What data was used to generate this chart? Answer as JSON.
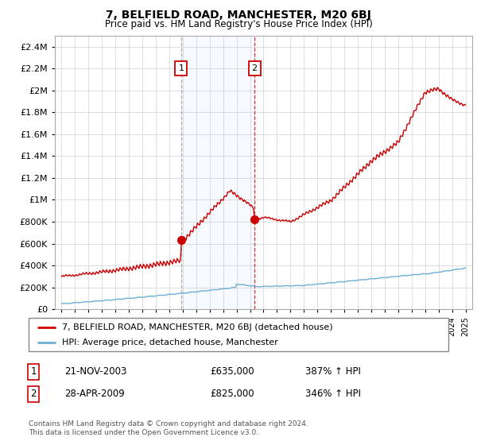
{
  "title": "7, BELFIELD ROAD, MANCHESTER, M20 6BJ",
  "subtitle": "Price paid vs. HM Land Registry's House Price Index (HPI)",
  "legend_line1": "7, BELFIELD ROAD, MANCHESTER, M20 6BJ (detached house)",
  "legend_line2": "HPI: Average price, detached house, Manchester",
  "annotation1_date": "21-NOV-2003",
  "annotation1_price": "£635,000",
  "annotation1_hpi": "387% ↑ HPI",
  "annotation2_date": "28-APR-2009",
  "annotation2_price": "£825,000",
  "annotation2_hpi": "346% ↑ HPI",
  "footer": "Contains HM Land Registry data © Crown copyright and database right 2024.\nThis data is licensed under the Open Government Licence v3.0.",
  "hpi_color": "#6baed6",
  "price_color": "#cc0000",
  "marker_color": "#cc0000",
  "shading_color": "#ddeeff",
  "sale1_year": 2003.88,
  "sale1_price": 635000,
  "sale2_year": 2009.33,
  "sale2_price": 825000,
  "xlim": [
    1994.5,
    2025.5
  ],
  "ylim": [
    0,
    2500000
  ],
  "yticks": [
    0,
    200000,
    400000,
    600000,
    800000,
    1000000,
    1200000,
    1400000,
    1600000,
    1800000,
    2000000,
    2200000,
    2400000
  ],
  "xtick_start": 1995,
  "xtick_end": 2025
}
